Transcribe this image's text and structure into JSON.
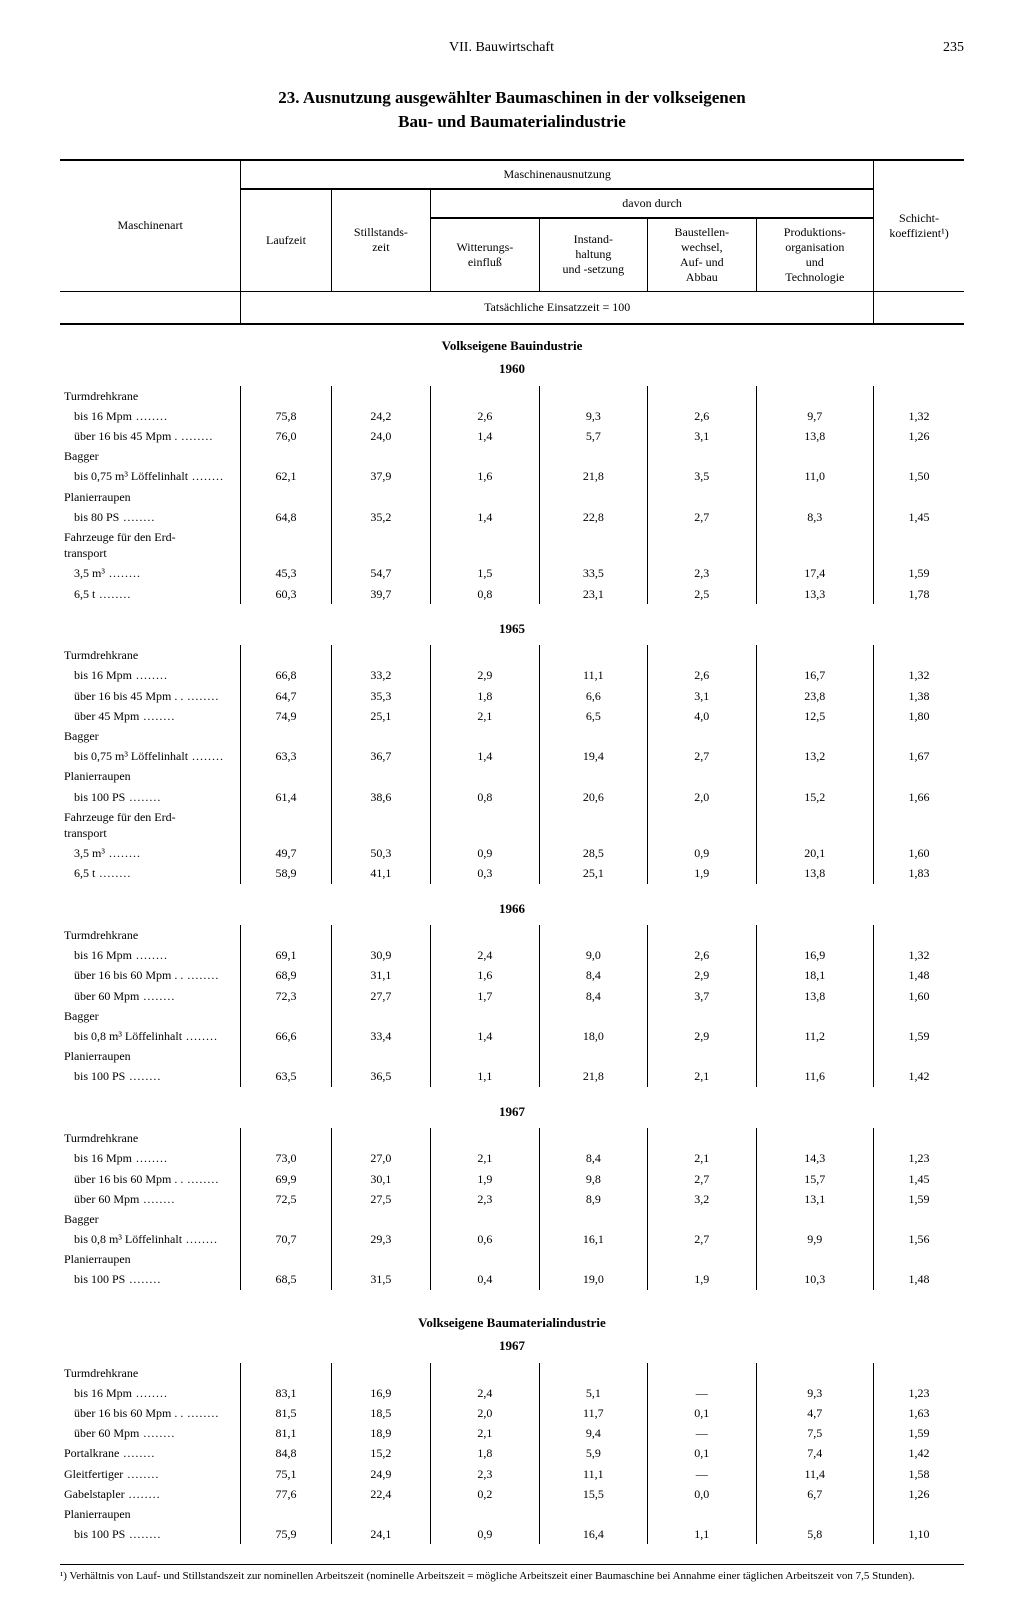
{
  "page": {
    "section": "VII. Bauwirtschaft",
    "number": "235",
    "title_line1": "23. Ausnutzung ausgewählter Baumaschinen in der volkseigenen",
    "title_line2": "Bau- und Baumaterialindustrie"
  },
  "header": {
    "col_machine": "Maschinenart",
    "group_util": "Maschinenausnutzung",
    "group_davon": "davon durch",
    "col_laufzeit": "Laufzeit",
    "col_stillstand": "Stillstands-\nzeit",
    "col_witterung": "Witterungs-\neinfluß",
    "col_instand": "Instand-\nhaltung\nund -setzung",
    "col_baustellen": "Baustellen-\nwechsel,\nAuf- und\nAbbau",
    "col_prod": "Produktions-\norganisation\nund\nTechnologie",
    "col_schicht": "Schicht-\nkoeffizient¹)",
    "sub_caption": "Tatsächliche Einsatzzeit = 100"
  },
  "sections": [
    {
      "title": "Volkseigene Bauindustrie",
      "years": [
        {
          "year": "1960",
          "groups": [
            {
              "label": "Turmdrehkrane",
              "rows": [
                {
                  "label": "bis 16 Mpm",
                  "v": [
                    "75,8",
                    "24,2",
                    "2,6",
                    "9,3",
                    "2,6",
                    "9,7",
                    "1,32"
                  ]
                },
                {
                  "label": "über 16 bis 45 Mpm .",
                  "v": [
                    "76,0",
                    "24,0",
                    "1,4",
                    "5,7",
                    "3,1",
                    "13,8",
                    "1,26"
                  ]
                }
              ]
            },
            {
              "label": "Bagger",
              "rows": [
                {
                  "label": "bis 0,75 m³ Löffelinhalt",
                  "v": [
                    "62,1",
                    "37,9",
                    "1,6",
                    "21,8",
                    "3,5",
                    "11,0",
                    "1,50"
                  ]
                }
              ]
            },
            {
              "label": "Planierraupen",
              "rows": [
                {
                  "label": "bis 80 PS",
                  "v": [
                    "64,8",
                    "35,2",
                    "1,4",
                    "22,8",
                    "2,7",
                    "8,3",
                    "1,45"
                  ]
                }
              ]
            },
            {
              "label": "Fahrzeuge für den Erd-\ntransport",
              "rows": [
                {
                  "label": "3,5 m³",
                  "v": [
                    "45,3",
                    "54,7",
                    "1,5",
                    "33,5",
                    "2,3",
                    "17,4",
                    "1,59"
                  ]
                },
                {
                  "label": "6,5 t",
                  "v": [
                    "60,3",
                    "39,7",
                    "0,8",
                    "23,1",
                    "2,5",
                    "13,3",
                    "1,78"
                  ]
                }
              ]
            }
          ]
        },
        {
          "year": "1965",
          "groups": [
            {
              "label": "Turmdrehkrane",
              "rows": [
                {
                  "label": "bis 16 Mpm",
                  "v": [
                    "66,8",
                    "33,2",
                    "2,9",
                    "11,1",
                    "2,6",
                    "16,7",
                    "1,32"
                  ]
                },
                {
                  "label": "über 16 bis 45 Mpm . .",
                  "v": [
                    "64,7",
                    "35,3",
                    "1,8",
                    "6,6",
                    "3,1",
                    "23,8",
                    "1,38"
                  ]
                },
                {
                  "label": "über 45 Mpm",
                  "v": [
                    "74,9",
                    "25,1",
                    "2,1",
                    "6,5",
                    "4,0",
                    "12,5",
                    "1,80"
                  ]
                }
              ]
            },
            {
              "label": "Bagger",
              "rows": [
                {
                  "label": "bis 0,75 m³ Löffelinhalt",
                  "v": [
                    "63,3",
                    "36,7",
                    "1,4",
                    "19,4",
                    "2,7",
                    "13,2",
                    "1,67"
                  ]
                }
              ]
            },
            {
              "label": "Planierraupen",
              "rows": [
                {
                  "label": "bis 100 PS",
                  "v": [
                    "61,4",
                    "38,6",
                    "0,8",
                    "20,6",
                    "2,0",
                    "15,2",
                    "1,66"
                  ]
                }
              ]
            },
            {
              "label": "Fahrzeuge für den Erd-\ntransport",
              "rows": [
                {
                  "label": "3,5 m³",
                  "v": [
                    "49,7",
                    "50,3",
                    "0,9",
                    "28,5",
                    "0,9",
                    "20,1",
                    "1,60"
                  ]
                },
                {
                  "label": "6,5 t",
                  "v": [
                    "58,9",
                    "41,1",
                    "0,3",
                    "25,1",
                    "1,9",
                    "13,8",
                    "1,83"
                  ]
                }
              ]
            }
          ]
        },
        {
          "year": "1966",
          "groups": [
            {
              "label": "Turmdrehkrane",
              "rows": [
                {
                  "label": "bis 16 Mpm",
                  "v": [
                    "69,1",
                    "30,9",
                    "2,4",
                    "9,0",
                    "2,6",
                    "16,9",
                    "1,32"
                  ]
                },
                {
                  "label": "über 16 bis 60 Mpm . .",
                  "v": [
                    "68,9",
                    "31,1",
                    "1,6",
                    "8,4",
                    "2,9",
                    "18,1",
                    "1,48"
                  ]
                },
                {
                  "label": "über 60 Mpm",
                  "v": [
                    "72,3",
                    "27,7",
                    "1,7",
                    "8,4",
                    "3,7",
                    "13,8",
                    "1,60"
                  ]
                }
              ]
            },
            {
              "label": "Bagger",
              "rows": [
                {
                  "label": "bis 0,8 m³ Löffelinhalt",
                  "v": [
                    "66,6",
                    "33,4",
                    "1,4",
                    "18,0",
                    "2,9",
                    "11,2",
                    "1,59"
                  ]
                }
              ]
            },
            {
              "label": "Planierraupen",
              "rows": [
                {
                  "label": "bis 100 PS",
                  "v": [
                    "63,5",
                    "36,5",
                    "1,1",
                    "21,8",
                    "2,1",
                    "11,6",
                    "1,42"
                  ]
                }
              ]
            }
          ]
        },
        {
          "year": "1967",
          "groups": [
            {
              "label": "Turmdrehkrane",
              "rows": [
                {
                  "label": "bis 16 Mpm",
                  "v": [
                    "73,0",
                    "27,0",
                    "2,1",
                    "8,4",
                    "2,1",
                    "14,3",
                    "1,23"
                  ]
                },
                {
                  "label": "über 16 bis 60 Mpm . .",
                  "v": [
                    "69,9",
                    "30,1",
                    "1,9",
                    "9,8",
                    "2,7",
                    "15,7",
                    "1,45"
                  ]
                },
                {
                  "label": "über 60 Mpm",
                  "v": [
                    "72,5",
                    "27,5",
                    "2,3",
                    "8,9",
                    "3,2",
                    "13,1",
                    "1,59"
                  ]
                }
              ]
            },
            {
              "label": "Bagger",
              "rows": [
                {
                  "label": "bis 0,8 m³ Löffelinhalt",
                  "v": [
                    "70,7",
                    "29,3",
                    "0,6",
                    "16,1",
                    "2,7",
                    "9,9",
                    "1,56"
                  ]
                }
              ]
            },
            {
              "label": "Planierraupen",
              "rows": [
                {
                  "label": "bis 100 PS",
                  "v": [
                    "68,5",
                    "31,5",
                    "0,4",
                    "19,0",
                    "1,9",
                    "10,3",
                    "1,48"
                  ]
                }
              ]
            }
          ]
        }
      ]
    },
    {
      "title": "Volkseigene Baumaterialindustrie",
      "years": [
        {
          "year": "1967",
          "groups": [
            {
              "label": "Turmdrehkrane",
              "rows": [
                {
                  "label": "bis 16 Mpm",
                  "v": [
                    "83,1",
                    "16,9",
                    "2,4",
                    "5,1",
                    "—",
                    "9,3",
                    "1,23"
                  ]
                },
                {
                  "label": "über 16 bis 60 Mpm . .",
                  "v": [
                    "81,5",
                    "18,5",
                    "2,0",
                    "11,7",
                    "0,1",
                    "4,7",
                    "1,63"
                  ]
                },
                {
                  "label": "über 60 Mpm",
                  "v": [
                    "81,1",
                    "18,9",
                    "2,1",
                    "9,4",
                    "—",
                    "7,5",
                    "1,59"
                  ]
                }
              ]
            },
            {
              "label": null,
              "rows": [
                {
                  "label_plain": "Portalkrane",
                  "v": [
                    "84,8",
                    "15,2",
                    "1,8",
                    "5,9",
                    "0,1",
                    "7,4",
                    "1,42"
                  ]
                },
                {
                  "label_plain": "Gleitfertiger",
                  "v": [
                    "75,1",
                    "24,9",
                    "2,3",
                    "11,1",
                    "—",
                    "11,4",
                    "1,58"
                  ]
                },
                {
                  "label_plain": "Gabelstapler",
                  "v": [
                    "77,6",
                    "22,4",
                    "0,2",
                    "15,5",
                    "0,0",
                    "6,7",
                    "1,26"
                  ]
                }
              ]
            },
            {
              "label": "Planierraupen",
              "rows": [
                {
                  "label": "bis 100 PS",
                  "v": [
                    "75,9",
                    "24,1",
                    "0,9",
                    "16,4",
                    "1,1",
                    "5,8",
                    "1,10"
                  ]
                }
              ]
            }
          ]
        }
      ]
    }
  ],
  "footnote": "¹) Verhältnis von Lauf- und Stillstandszeit zur nominellen Arbeitszeit (nominelle Arbeitszeit = mögliche Arbeitszeit einer Baumaschine bei Annahme einer täglichen Arbeitszeit von 7,5 Stunden)."
}
